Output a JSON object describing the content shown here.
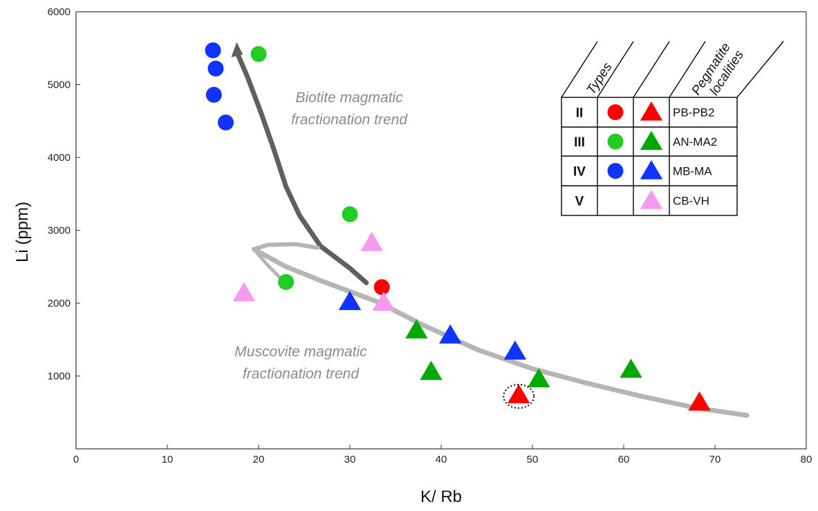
{
  "chart_data": {
    "type": "scatter",
    "xlabel": "K/ Rb",
    "ylabel": "Li (ppm)",
    "xlim": [
      0,
      80
    ],
    "ylim": [
      0,
      6000
    ],
    "xticks": [
      0,
      10,
      20,
      30,
      40,
      50,
      60,
      70,
      80
    ],
    "yticks": [
      1000,
      2000,
      3000,
      4000,
      5000,
      6000
    ],
    "grid": false,
    "legend": {
      "placement": "top-right",
      "headers": [
        "Types",
        "Pegmatite localities"
      ],
      "rows": [
        {
          "type": "II",
          "circle_color": "#ff0000",
          "triangle_color": "#ff0000",
          "locality": "PB-PB2"
        },
        {
          "type": "III",
          "circle_color": "#22cc22",
          "triangle_color": "#00aa00",
          "locality": "AN-MA2"
        },
        {
          "type": "IV",
          "circle_color": "#1133ff",
          "triangle_color": "#1133ff",
          "locality": "MB-MA"
        },
        {
          "type": "V",
          "circle_color": "",
          "triangle_color": "#f799f0",
          "locality": "CB-VH"
        }
      ]
    },
    "annotations": [
      {
        "text_lines": [
          "Biotite magmatic",
          "fractionation trend"
        ]
      },
      {
        "text_lines": [
          "Muscovite magmatic",
          "fractionation trend"
        ]
      }
    ],
    "series": [
      {
        "marker": "circle",
        "color": "#ff0000",
        "points": [
          [
            33.5,
            2220
          ]
        ]
      },
      {
        "marker": "circle",
        "color": "#22cc22",
        "points": [
          [
            20,
            5420
          ],
          [
            30,
            3220
          ],
          [
            23,
            2290
          ]
        ]
      },
      {
        "marker": "circle",
        "color": "#1133ff",
        "points": [
          [
            15,
            5470
          ],
          [
            15.3,
            5220
          ],
          [
            15.1,
            4860
          ],
          [
            16.4,
            4480
          ]
        ]
      },
      {
        "marker": "triangle",
        "color": "#ff0000",
        "points": [
          [
            48.5,
            740
          ],
          [
            68.3,
            640
          ]
        ]
      },
      {
        "marker": "triangle",
        "color": "#00aa00",
        "points": [
          [
            37.3,
            1630
          ],
          [
            38.9,
            1060
          ],
          [
            50.7,
            960
          ],
          [
            60.8,
            1090
          ]
        ]
      },
      {
        "marker": "triangle",
        "color": "#1133ff",
        "points": [
          [
            30,
            2020
          ],
          [
            41,
            1560
          ],
          [
            48.1,
            1340
          ]
        ]
      },
      {
        "marker": "triangle",
        "color": "#f799f0",
        "points": [
          [
            18.4,
            2140
          ],
          [
            32.4,
            2830
          ],
          [
            33.7,
            2010
          ]
        ]
      }
    ],
    "highlighted_point": {
      "x": 48.5,
      "y": 740,
      "style": "dotted ellipse"
    },
    "trends": [
      {
        "name": "biotite",
        "color": "#5f5f5f",
        "points": [
          [
            31.8,
            2280
          ],
          [
            30,
            2480
          ],
          [
            26.8,
            2780
          ],
          [
            24.5,
            3200
          ],
          [
            23,
            3600
          ],
          [
            21.7,
            4100
          ],
          [
            20.3,
            4600
          ],
          [
            18.8,
            5100
          ],
          [
            17.6,
            5450
          ]
        ]
      },
      {
        "name": "muscovite",
        "color": "#b5b5b5",
        "points": [
          [
            19.5,
            2740
          ],
          [
            23,
            2500
          ],
          [
            27,
            2300
          ],
          [
            33,
            2020
          ],
          [
            38,
            1700
          ],
          [
            44,
            1360
          ],
          [
            50,
            1100
          ],
          [
            56,
            900
          ],
          [
            62,
            720
          ],
          [
            68,
            560
          ],
          [
            73.5,
            460
          ]
        ]
      },
      {
        "name": "muscovite-start",
        "color": "#b5b5b5",
        "points": [
          [
            19.5,
            2740
          ],
          [
            21,
            2800
          ],
          [
            24,
            2810
          ],
          [
            26.5,
            2760
          ]
        ]
      },
      {
        "name": "muscovite-lower-branch",
        "color": "#b5b5b5",
        "points": [
          [
            19.5,
            2740
          ],
          [
            21,
            2520
          ],
          [
            22.5,
            2330
          ]
        ]
      }
    ]
  }
}
